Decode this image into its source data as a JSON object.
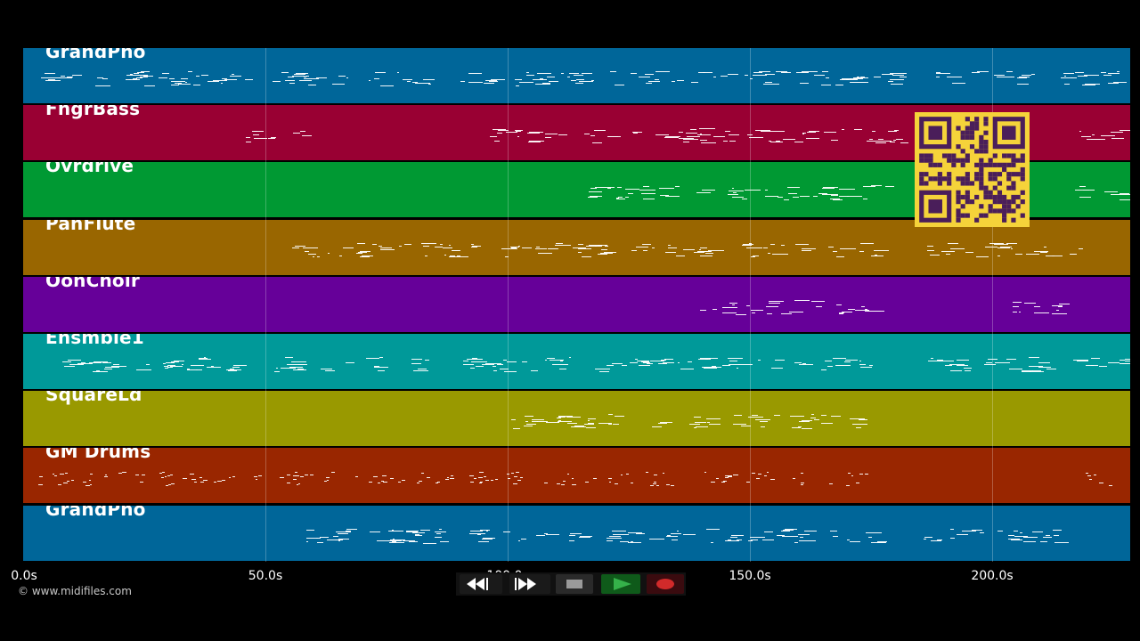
{
  "tracks": [
    {
      "name": "GrandPno",
      "color": "#006699"
    },
    {
      "name": "FngrBass",
      "color": "#990033"
    },
    {
      "name": "Ovrdrive",
      "color": "#009933"
    },
    {
      "name": "PanFlute",
      "color": "#996600"
    },
    {
      "name": "OohChoir",
      "color": "#660099"
    },
    {
      "name": "Ensmble1",
      "color": "#009999"
    },
    {
      "name": "SquareLd",
      "color": "#999900"
    },
    {
      "name": "GM Drums",
      "color": "#992600"
    },
    {
      "name": "GrandPno",
      "color": "#006699"
    }
  ],
  "timeline": {
    "ticks": [
      "0.0s",
      "50.0s",
      "100.0s",
      "150.0s",
      "200.0s"
    ]
  },
  "copyright": "© www.midifiles.com",
  "transport": {
    "buttons": [
      {
        "name": "rewind-button",
        "icon": "rewind-icon"
      },
      {
        "name": "fast-forward-button",
        "icon": "fast-forward-icon"
      },
      {
        "name": "stop-button",
        "icon": "stop-icon"
      },
      {
        "name": "play-button",
        "icon": "play-icon"
      },
      {
        "name": "record-button",
        "icon": "record-icon"
      }
    ]
  },
  "qr_code": {
    "color": "#f5d33a",
    "module_color": "#4a1e5a"
  }
}
